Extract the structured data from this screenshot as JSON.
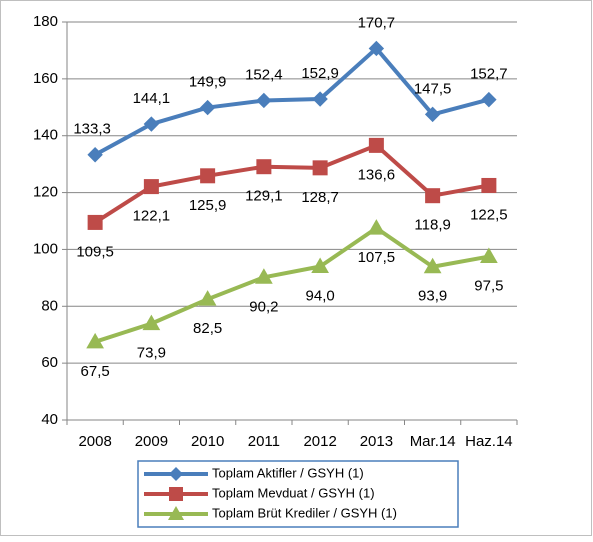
{
  "chart_data": {
    "type": "line",
    "categories": [
      "2008",
      "2009",
      "2010",
      "2011",
      "2012",
      "2013",
      "Mar.14",
      "Haz.14"
    ],
    "series": [
      {
        "name": "Toplam Aktifler / GSYH (1)",
        "color": "#4a7ebb",
        "marker": "diamond",
        "values": [
          133.3,
          144.1,
          149.9,
          152.4,
          152.9,
          170.7,
          147.5,
          152.7
        ],
        "value_labels": [
          "133,3",
          "144,1",
          "149,9",
          "152,4",
          "152,9",
          "170,7",
          "147,5",
          "152,7"
        ]
      },
      {
        "name": "Toplam Mevduat / GSYH (1)",
        "color": "#be4b48",
        "marker": "square",
        "values": [
          109.5,
          122.1,
          125.9,
          129.1,
          128.7,
          136.6,
          118.9,
          122.5
        ],
        "value_labels": [
          "109,5",
          "122,1",
          "125,9",
          "129,1",
          "128,7",
          "136,6",
          "118,9",
          "122,5"
        ]
      },
      {
        "name": "Toplam Brüt Krediler / GSYH (1)",
        "color": "#98b954",
        "marker": "triangle",
        "values": [
          67.5,
          73.9,
          82.5,
          90.2,
          94.0,
          107.5,
          93.9,
          97.5
        ],
        "value_labels": [
          "67,5",
          "73,9",
          "82,5",
          "90,2",
          "94,0",
          "107,5",
          "93,9",
          "97,5"
        ]
      }
    ],
    "ylim": [
      40,
      180
    ],
    "yticks": [
      40,
      60,
      80,
      100,
      120,
      140,
      160,
      180
    ],
    "grid": true,
    "legend": "bottom"
  }
}
